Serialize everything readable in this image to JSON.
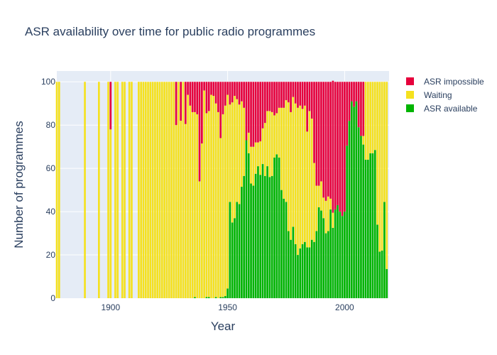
{
  "chart_data": {
    "type": "bar",
    "barmode": "stack",
    "title": "ASR availability over time for public radio programmes",
    "xlabel": "Year",
    "ylabel": "Number of programmes",
    "xlim": [
      1877,
      2019
    ],
    "ylim": [
      0,
      105
    ],
    "x_ticks": [
      1900,
      1950,
      2000
    ],
    "y_ticks": [
      0,
      20,
      40,
      60,
      80,
      100
    ],
    "grid": true,
    "legend_position": "top-right",
    "colors": {
      "plot_bg": "#e5ecf6",
      "grid": "#ffffff",
      "text": "#2a3f5f"
    },
    "years": [
      1877,
      1878,
      1889,
      1895,
      1899,
      1900,
      1902,
      1903,
      1905,
      1906,
      1908,
      1909,
      1912,
      1913,
      1914,
      1915,
      1916,
      1917,
      1918,
      1919,
      1920,
      1921,
      1922,
      1923,
      1924,
      1925,
      1926,
      1927,
      1928,
      1929,
      1930,
      1931,
      1932,
      1933,
      1934,
      1935,
      1936,
      1937,
      1938,
      1939,
      1940,
      1941,
      1942,
      1943,
      1944,
      1945,
      1946,
      1947,
      1948,
      1949,
      1950,
      1951,
      1952,
      1953,
      1954,
      1955,
      1956,
      1957,
      1958,
      1959,
      1960,
      1961,
      1962,
      1963,
      1964,
      1965,
      1966,
      1967,
      1968,
      1969,
      1970,
      1971,
      1972,
      1973,
      1974,
      1975,
      1976,
      1977,
      1978,
      1979,
      1980,
      1981,
      1982,
      1983,
      1984,
      1985,
      1986,
      1987,
      1988,
      1989,
      1990,
      1991,
      1992,
      1993,
      1994,
      1995,
      1996,
      1997,
      1998,
      1999,
      2000,
      2001,
      2002,
      2003,
      2004,
      2005,
      2006,
      2007,
      2008,
      2009,
      2010,
      2011,
      2012,
      2013,
      2014,
      2015,
      2016,
      2017,
      2018
    ],
    "series": [
      {
        "name": "ASR available",
        "color": "#00b400",
        "values": [
          0,
          0,
          0,
          0,
          0,
          0,
          0,
          0,
          0,
          0,
          0,
          0,
          0,
          0,
          0,
          0,
          0,
          0,
          0,
          0,
          0,
          0,
          0,
          0,
          0,
          0,
          0,
          0,
          0,
          0,
          0,
          0,
          0,
          0,
          0,
          0,
          0.5,
          0,
          0,
          0,
          0,
          0.5,
          0.5,
          0,
          0,
          0.5,
          0,
          0.5,
          0.5,
          1,
          4.5,
          44.5,
          35,
          37,
          44.5,
          43.5,
          51.5,
          56.5,
          73,
          67,
          53,
          52,
          57.5,
          61,
          57,
          62,
          56.5,
          61,
          56,
          56.5,
          65,
          66.5,
          65,
          50,
          46,
          44.5,
          31,
          27,
          33,
          25,
          20,
          23,
          25,
          26,
          23.5,
          23.5,
          27,
          26,
          31,
          42,
          40.5,
          37,
          30,
          31,
          41,
          32.5,
          41,
          43,
          40,
          38,
          40,
          70.5,
          82,
          91,
          88.5,
          91,
          79,
          75,
          71,
          64,
          64,
          67,
          67,
          68.5,
          34,
          21.5,
          22,
          44.5,
          13.5
        ]
      },
      {
        "name": "Waiting",
        "color": "#f5e11e",
        "values": [
          100,
          100,
          100,
          100,
          100,
          78,
          100,
          100,
          100,
          100,
          100,
          100,
          100,
          100,
          100,
          100,
          100,
          100,
          100,
          100,
          100,
          100,
          100,
          100,
          100,
          100,
          100,
          100,
          80,
          100,
          82,
          100,
          80.5,
          94,
          89,
          86,
          85.5,
          85,
          54,
          71.5,
          96,
          85,
          86,
          94,
          93.5,
          89.5,
          86,
          73.5,
          84.5,
          88,
          89.5,
          45,
          55.5,
          56.5,
          47.5,
          46,
          39.5,
          31.5,
          0,
          9.5,
          17,
          18,
          14.5,
          11,
          15.5,
          16.5,
          24.5,
          25.5,
          30.5,
          29.5,
          19.5,
          19,
          23,
          38,
          42,
          47,
          59.5,
          59,
          60,
          65,
          68,
          66,
          62.5,
          63,
          53.5,
          63,
          56,
          36.5,
          21,
          10,
          13.5,
          9.5,
          15,
          16,
          5,
          7,
          0,
          0,
          0,
          0,
          0,
          0,
          0,
          0,
          0,
          0,
          0,
          0,
          4,
          36,
          36,
          33,
          33,
          31.5,
          66,
          78.5,
          78,
          55.5,
          86.5
        ]
      },
      {
        "name": "ASR impossible",
        "color": "#e6003c",
        "values": [
          0,
          0,
          0,
          0,
          0,
          22,
          0,
          0,
          0,
          0,
          0,
          0,
          0,
          0,
          0,
          0,
          0,
          0,
          0,
          0,
          0,
          0,
          0,
          0,
          0,
          0,
          0,
          0,
          20,
          0,
          18,
          0,
          19.5,
          6,
          11,
          14,
          14,
          15,
          46,
          28.5,
          4,
          14.5,
          13.5,
          6,
          6.5,
          10,
          14,
          26,
          15,
          11,
          6,
          10.5,
          9.5,
          6.5,
          8,
          10.5,
          9,
          12,
          27,
          23.5,
          30,
          30,
          28,
          28,
          27.5,
          21.5,
          19,
          13.5,
          13.5,
          14,
          15.5,
          14.5,
          12,
          12,
          12,
          8.5,
          9.5,
          14,
          7,
          10,
          12,
          11,
          12.5,
          11,
          23,
          13.5,
          17,
          37.5,
          48,
          48,
          46,
          53.5,
          55,
          53,
          54,
          61,
          59,
          57,
          60,
          62,
          60,
          29.5,
          18,
          9,
          11.5,
          9,
          21,
          25,
          25,
          0,
          0,
          0,
          0,
          0,
          0,
          0,
          0,
          0,
          0
        ]
      }
    ]
  },
  "legend": [
    {
      "label": "ASR impossible",
      "color": "#e6003c"
    },
    {
      "label": "Waiting",
      "color": "#f5e11e"
    },
    {
      "label": "ASR available",
      "color": "#00b400"
    }
  ]
}
